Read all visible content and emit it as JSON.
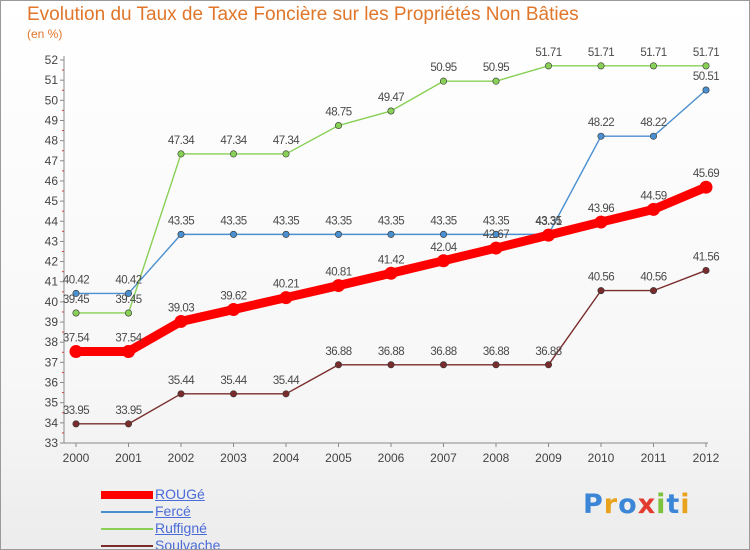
{
  "header": {
    "title": "Evolution du Taux de Taxe Foncière sur les Propriétés Non Bâties",
    "subtitle": "(en %)"
  },
  "logo": {
    "letters": [
      "P",
      "r",
      "o",
      "x",
      "i",
      "t",
      "i"
    ],
    "colors": [
      "#3b86d6",
      "#e8a21c",
      "#3b86d6",
      "#e23a2f",
      "#7cc23a",
      "#3b86d6",
      "#e8a21c"
    ]
  },
  "chart_data": {
    "type": "line",
    "title": "Evolution du Taux de Taxe Foncière sur les Propriétés Non Bâties",
    "ylabel": "(en %)",
    "xlabel": "",
    "x": [
      "2000",
      "2001",
      "2002",
      "2003",
      "2004",
      "2005",
      "2006",
      "2007",
      "2008",
      "2009",
      "2010",
      "2011",
      "2012"
    ],
    "ylim": [
      33,
      52
    ],
    "yticks": [
      "33",
      "34",
      "35",
      "36",
      "37",
      "38",
      "39",
      "40",
      "41",
      "42",
      "43",
      "44",
      "45",
      "46",
      "47",
      "48",
      "49",
      "50",
      "51",
      "52"
    ],
    "grid": false,
    "legend_position": "bottom-left",
    "series": [
      {
        "name": "ROUGé",
        "color": "#ff0000",
        "values": [
          37.54,
          37.54,
          39.03,
          39.62,
          40.21,
          40.81,
          41.42,
          42.04,
          42.67,
          43.31,
          43.96,
          44.59,
          45.69
        ],
        "labels": [
          "37.54",
          "37.54",
          "39.03",
          "39.62",
          "40.21",
          "40.81",
          "41.42",
          "42.04",
          "42.67",
          "43.31",
          "43.96",
          "44.59",
          "45.69"
        ]
      },
      {
        "name": "Fercé",
        "color": "#4a8fcf",
        "values": [
          40.42,
          40.42,
          43.35,
          43.35,
          43.35,
          43.35,
          43.35,
          43.35,
          43.35,
          43.35,
          48.22,
          48.22,
          50.51
        ],
        "labels": [
          "40.42",
          "40.42",
          "43.35",
          "43.35",
          "43.35",
          "43.35",
          "43.35",
          "43.35",
          "43.35",
          "43.35",
          "48.22",
          "48.22",
          "50.51"
        ]
      },
      {
        "name": "Ruffigné",
        "color": "#88d056",
        "values": [
          39.45,
          39.45,
          47.34,
          47.34,
          47.34,
          48.75,
          49.47,
          50.95,
          50.95,
          51.71,
          51.71,
          51.71,
          51.71
        ],
        "labels": [
          "39.45",
          "39.45",
          "47.34",
          "47.34",
          "47.34",
          "48.75",
          "49.47",
          "50.95",
          "50.95",
          "51.71",
          "51.71",
          "51.71",
          "51.71"
        ]
      },
      {
        "name": "Soulvache",
        "color": "#7a2c2c",
        "values": [
          33.95,
          33.95,
          35.44,
          35.44,
          35.44,
          36.88,
          36.88,
          36.88,
          36.88,
          36.88,
          40.56,
          40.56,
          41.56
        ],
        "labels": [
          "33.95",
          "33.95",
          "35.44",
          "35.44",
          "35.44",
          "36.88",
          "36.88",
          "36.88",
          "36.88",
          "36.88",
          "40.56",
          "40.56",
          "41.56"
        ]
      }
    ]
  }
}
